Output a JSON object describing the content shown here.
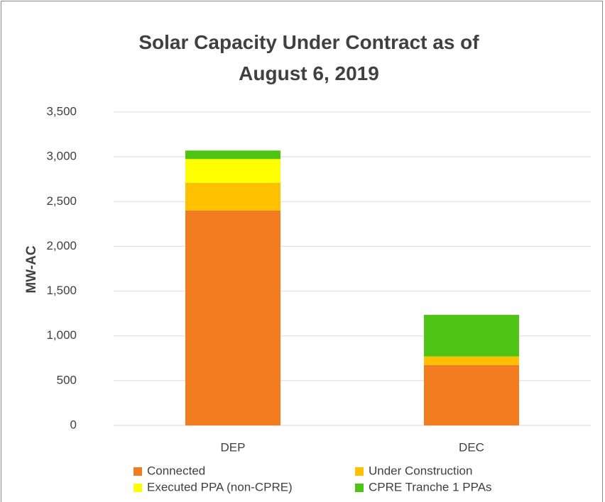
{
  "chart_data": {
    "type": "stacked_bar",
    "title": "Solar Capacity Under Contract as of August 6, 2019",
    "y_label": "MW-AC",
    "categories": [
      "DEP",
      "DEC"
    ],
    "series": [
      {
        "name": "Connected",
        "color": "#f47c20",
        "values": [
          2400,
          675
        ]
      },
      {
        "name": "Under Construction",
        "color": "#ffc000",
        "values": [
          310,
          95
        ]
      },
      {
        "name": "Executed PPA (non-CPRE)",
        "color": "#ffff00",
        "values": [
          265,
          0
        ]
      },
      {
        "name": "CPRE Tranche 1 PPAs",
        "color": "#4fc414",
        "values": [
          95,
          465
        ]
      }
    ],
    "ylim": [
      0,
      3500
    ],
    "yticks": [
      0,
      500,
      {
        "value": 1000,
        "label": "1,000"
      },
      {
        "value": 1500,
        "label": "1,500"
      },
      {
        "value": 2000,
        "label": "2,000"
      },
      {
        "value": 2500,
        "label": "2,500"
      },
      {
        "value": 3000,
        "label": "3,000"
      },
      {
        "value": 3500,
        "label": "3,500"
      }
    ],
    "grid": true
  }
}
